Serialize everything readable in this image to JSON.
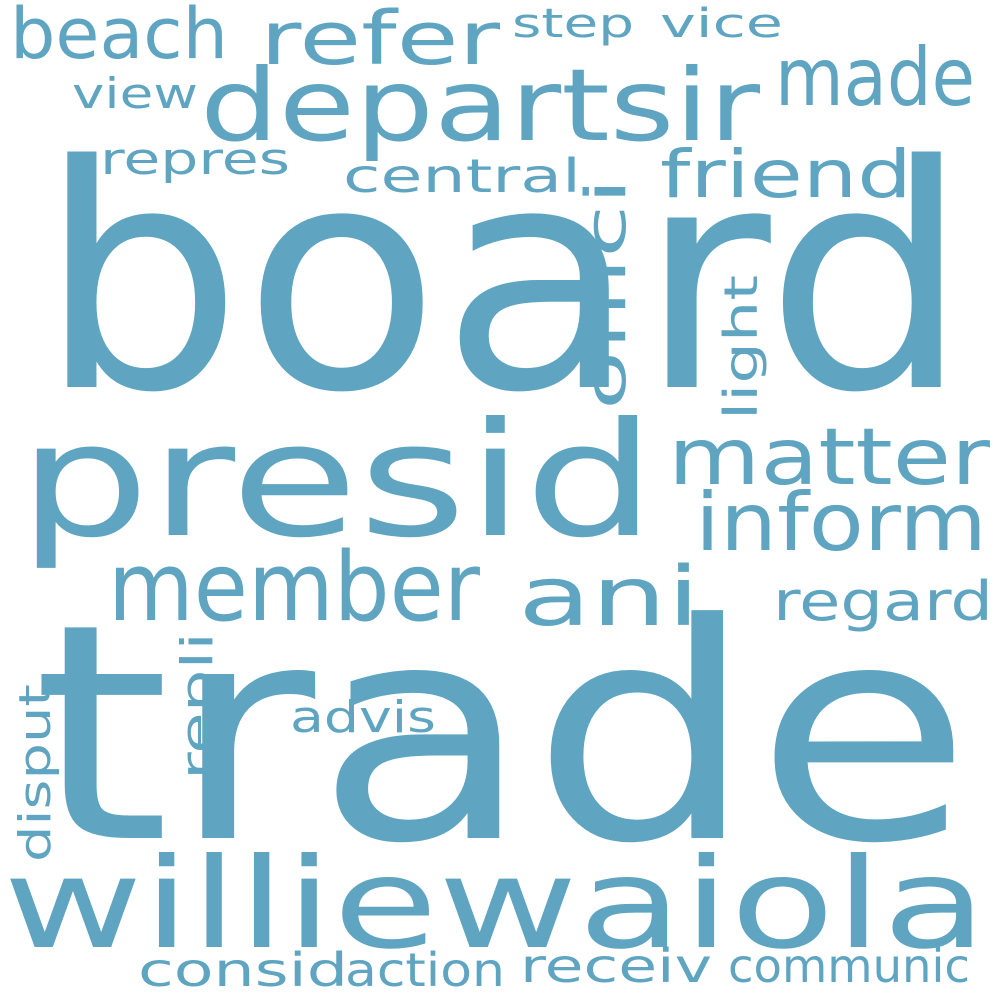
{
  "cloud": {
    "color": "#5fa5c1",
    "words": [
      "board",
      "trade",
      "presid",
      "williewaiola",
      "departsir",
      "refer",
      "beach",
      "made",
      "member",
      "matter",
      "inform",
      "ani",
      "friend",
      "offici",
      "regard",
      "central",
      "repres",
      "step",
      "vice",
      "view",
      "light",
      "consid",
      "action",
      "receiv",
      "communic",
      "advis",
      "repli",
      "disput"
    ]
  }
}
